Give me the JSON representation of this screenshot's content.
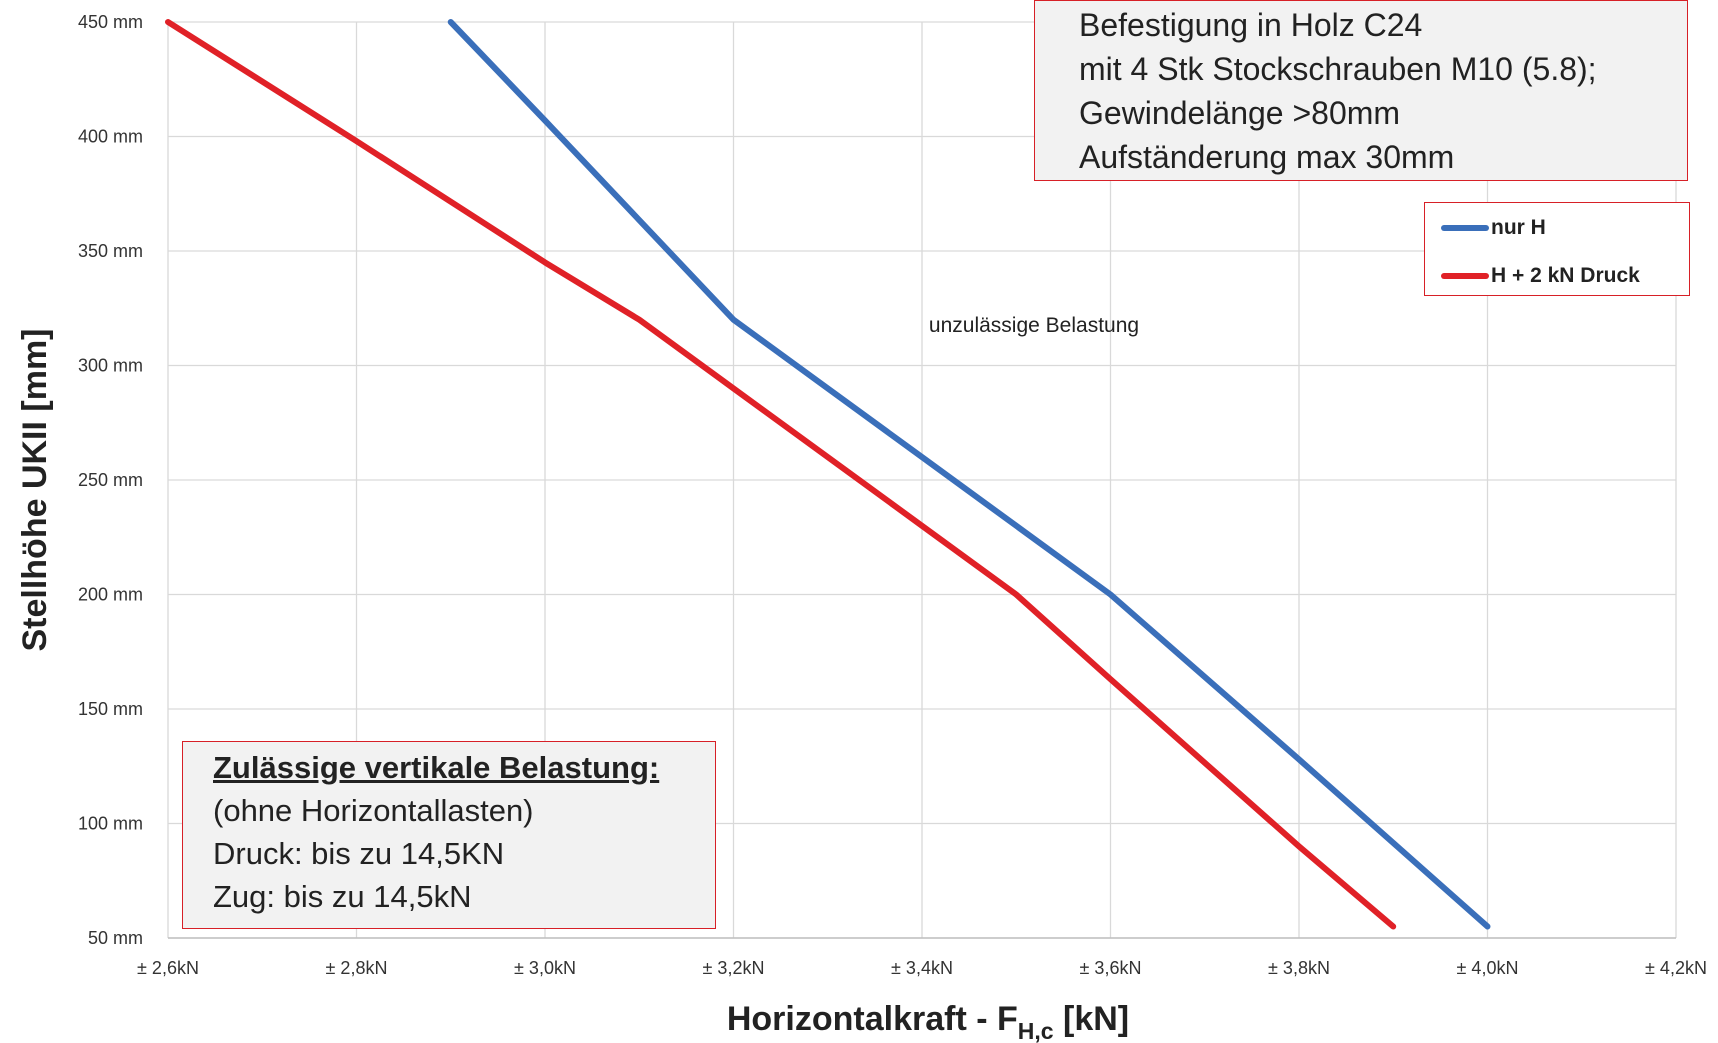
{
  "chart_data": {
    "type": "line",
    "xlabel": "Horizontalkraft - F",
    "xlabel_sub": "H,c",
    "xlabel_unit": " [kN]",
    "ylabel": "Stellhöhe UKII [mm]",
    "xlim": [
      2.6,
      4.2
    ],
    "ylim": [
      50,
      450
    ],
    "x_ticks": [
      2.6,
      2.8,
      3.0,
      3.2,
      3.4,
      3.6,
      3.8,
      4.0,
      4.2
    ],
    "x_tick_labels": [
      "± 2,6kN",
      "± 2,8kN",
      "± 3,0kN",
      "± 3,2kN",
      "± 3,4kN",
      "± 3,6kN",
      "± 3,8kN",
      "± 4,0kN",
      "± 4,2kN"
    ],
    "y_ticks": [
      50,
      100,
      150,
      200,
      250,
      300,
      350,
      400,
      450
    ],
    "y_tick_labels": [
      "50 mm",
      "100 mm",
      "150 mm",
      "200 mm",
      "250 mm",
      "300 mm",
      "350 mm",
      "400 mm",
      "450 mm"
    ],
    "grid": true,
    "legend_position": "top-right",
    "series": [
      {
        "name": "nur H",
        "color": "#3a6fba",
        "points": [
          [
            2.9,
            450
          ],
          [
            3.0,
            407
          ],
          [
            3.2,
            320
          ],
          [
            3.4,
            260
          ],
          [
            3.6,
            200
          ],
          [
            3.8,
            128
          ],
          [
            4.0,
            55
          ]
        ]
      },
      {
        "name": "H + 2 kN Druck",
        "color": "#e02127",
        "points": [
          [
            2.6,
            450
          ],
          [
            2.8,
            398
          ],
          [
            3.0,
            345
          ],
          [
            3.1,
            320
          ],
          [
            3.2,
            290
          ],
          [
            3.4,
            230
          ],
          [
            3.5,
            200
          ],
          [
            3.6,
            163
          ],
          [
            3.8,
            90
          ],
          [
            3.9,
            55
          ]
        ]
      }
    ],
    "annotations": {
      "region_label": "unzulässige Belastung",
      "info_box": [
        "Befestigung in Holz C24",
        "mit 4 Stk Stockschrauben M10 (5.8);",
        "Gewindelänge >80mm",
        "Aufständerung max 30mm"
      ],
      "vertical_box": {
        "title": "Zulässige vertikale Belastung:",
        "lines": [
          "(ohne Horizontallasten)",
          "Druck: bis zu 14,5KN",
          "Zug: bis zu 14,5kN"
        ]
      }
    }
  }
}
